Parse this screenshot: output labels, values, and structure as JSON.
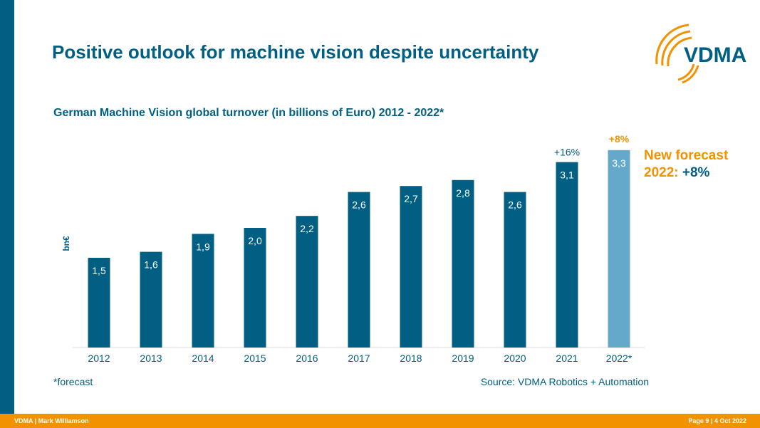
{
  "slide": {
    "title": "Positive outlook for machine vision despite uncertainty",
    "forecast_label": "New forecast",
    "forecast_year": "2022:",
    "forecast_value": "+8%",
    "footnote": "*forecast",
    "source": "Source: VDMA Robotics + Automation",
    "footer_left": "VDMA | Mark Williamson",
    "footer_right": "Page 9 | 4 Oct 2022",
    "logo_text": "VDMA"
  },
  "colors": {
    "primary": "#005f83",
    "forecast_bar": "#64a9c9",
    "accent": "#f39200"
  },
  "chart_data": {
    "type": "bar",
    "title": "German Machine Vision global turnover (in billions of Euro) 2012 - 2022*",
    "ylabel": "bn€",
    "xlabel": "",
    "categories": [
      "2012",
      "2013",
      "2014",
      "2015",
      "2016",
      "2017",
      "2018",
      "2019",
      "2020",
      "2021",
      "2022*"
    ],
    "values": [
      1.5,
      1.6,
      1.9,
      2.0,
      2.2,
      2.6,
      2.7,
      2.8,
      2.6,
      3.1,
      3.3
    ],
    "value_labels": [
      "1,5",
      "1,6",
      "1,9",
      "2,0",
      "2,2",
      "2,6",
      "2,7",
      "2,8",
      "2,6",
      "3,1",
      "3,3"
    ],
    "forecast_index": 10,
    "annotations": [
      {
        "category": "2021",
        "text": "+16%"
      },
      {
        "category": "2022*",
        "text": "+8%"
      }
    ],
    "ylim": [
      0,
      3.5
    ],
    "grid": false,
    "legend": "none"
  }
}
